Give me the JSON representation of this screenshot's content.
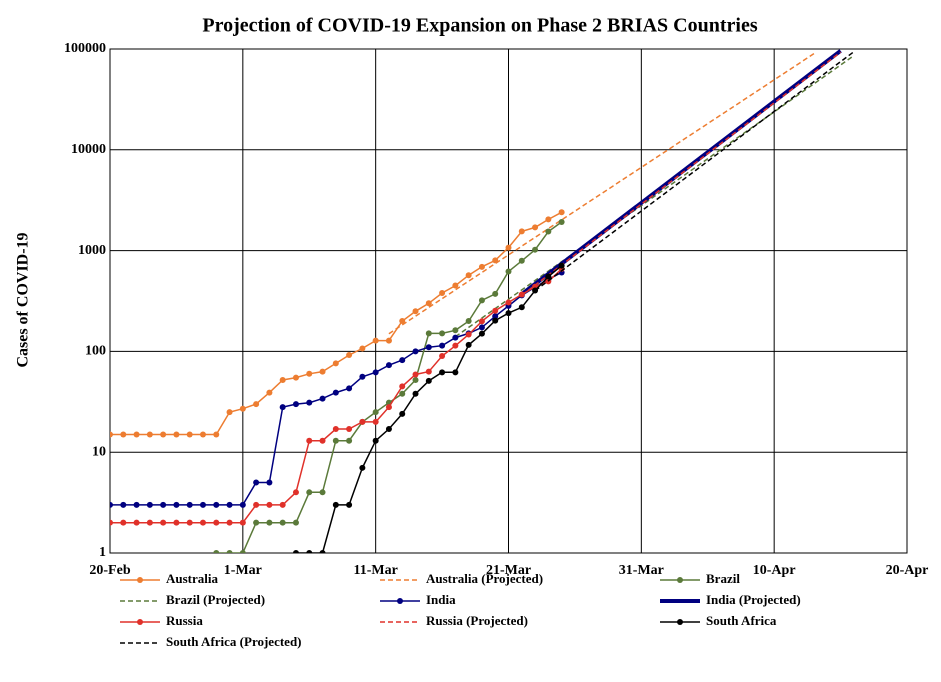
{
  "chart_data": {
    "type": "line",
    "title": "Projection of COVID-19 Expansion on Phase 2 BRIAS Countries",
    "y_label": "Cases of COVID-19",
    "y_scale": "log",
    "grid": true,
    "legend": "bottom",
    "xlim": [
      "20-Feb",
      "20-Apr"
    ],
    "xticks": [
      "20-Feb",
      "1-Mar",
      "11-Mar",
      "21-Mar",
      "31-Mar",
      "10-Apr",
      "20-Apr"
    ],
    "ylim": [
      1,
      100000
    ],
    "yticks": [
      1,
      10,
      100,
      1000,
      10000,
      100000
    ],
    "series": [
      {
        "name": "Australia",
        "color": "#ed7d31",
        "style": "solid",
        "marker": "circle",
        "line_width": 1.5,
        "x": [
          "20-Feb",
          "21-Feb",
          "22-Feb",
          "23-Feb",
          "24-Feb",
          "25-Feb",
          "26-Feb",
          "27-Feb",
          "28-Feb",
          "29-Feb",
          "1-Mar",
          "2-Mar",
          "3-Mar",
          "4-Mar",
          "5-Mar",
          "6-Mar",
          "7-Mar",
          "8-Mar",
          "9-Mar",
          "10-Mar",
          "11-Mar",
          "12-Mar",
          "13-Mar",
          "14-Mar",
          "15-Mar",
          "16-Mar",
          "17-Mar",
          "18-Mar",
          "19-Mar",
          "20-Mar",
          "21-Mar",
          "22-Mar",
          "23-Mar",
          "24-Mar",
          "25-Mar"
        ],
        "values": [
          15,
          15,
          15,
          15,
          15,
          15,
          15,
          15,
          15,
          25,
          27,
          30,
          39,
          52,
          55,
          60,
          63,
          76,
          92,
          107,
          128,
          128,
          200,
          250,
          300,
          380,
          450,
          570,
          690,
          800,
          1070,
          1550,
          1700,
          2040,
          2400
        ]
      },
      {
        "name": "Australia (Projected)",
        "color": "#ed7d31",
        "style": "dashed",
        "marker": "none",
        "line_width": 1.5,
        "x": [
          "12-Mar",
          "13-Apr"
        ],
        "values": [
          150,
          90000
        ]
      },
      {
        "name": "Brazil",
        "color": "#5b7a3a",
        "style": "solid",
        "marker": "circle",
        "line_width": 1.5,
        "x": [
          "28-Feb",
          "29-Feb",
          "1-Mar",
          "2-Mar",
          "3-Mar",
          "4-Mar",
          "5-Mar",
          "6-Mar",
          "7-Mar",
          "8-Mar",
          "9-Mar",
          "10-Mar",
          "11-Mar",
          "12-Mar",
          "13-Mar",
          "14-Mar",
          "15-Mar",
          "16-Mar",
          "17-Mar",
          "18-Mar",
          "19-Mar",
          "20-Mar",
          "21-Mar",
          "22-Mar",
          "23-Mar",
          "24-Mar",
          "25-Mar"
        ],
        "values": [
          1,
          1,
          1,
          2,
          2,
          2,
          2,
          4,
          4,
          13,
          13,
          20,
          25,
          31,
          38,
          52,
          151,
          151,
          162,
          200,
          321,
          372,
          621,
          793,
          1021,
          1546,
          1924
        ]
      },
      {
        "name": "Brazil (Projected)",
        "color": "#5b7a3a",
        "style": "dashed",
        "marker": "none",
        "line_width": 1.5,
        "x": [
          "17-Mar",
          "16-Apr"
        ],
        "values": [
          140,
          86000
        ]
      },
      {
        "name": "India",
        "color": "#000080",
        "style": "solid",
        "marker": "circle",
        "line_width": 1.5,
        "x": [
          "20-Feb",
          "21-Feb",
          "22-Feb",
          "23-Feb",
          "24-Feb",
          "25-Feb",
          "26-Feb",
          "27-Feb",
          "28-Feb",
          "29-Feb",
          "1-Mar",
          "2-Mar",
          "3-Mar",
          "4-Mar",
          "5-Mar",
          "6-Mar",
          "7-Mar",
          "8-Mar",
          "9-Mar",
          "10-Mar",
          "11-Mar",
          "12-Mar",
          "13-Mar",
          "14-Mar",
          "15-Mar",
          "16-Mar",
          "17-Mar",
          "18-Mar",
          "19-Mar",
          "20-Mar",
          "21-Mar",
          "22-Mar",
          "23-Mar",
          "24-Mar",
          "25-Mar"
        ],
        "values": [
          3,
          3,
          3,
          3,
          3,
          3,
          3,
          3,
          3,
          3,
          3,
          5,
          5,
          28,
          30,
          31,
          34,
          39,
          43,
          56,
          62,
          73,
          82,
          100,
          110,
          114,
          137,
          151,
          173,
          223,
          283,
          360,
          434,
          519,
          606
        ]
      },
      {
        "name": "India (Projected)",
        "color": "#000080",
        "style": "solid",
        "marker": "none",
        "line_width": 4,
        "x": [
          "22-Mar",
          "15-Apr"
        ],
        "values": [
          370,
          96000
        ]
      },
      {
        "name": "Russia",
        "color": "#e0312a",
        "style": "solid",
        "marker": "circle",
        "line_width": 1.5,
        "x": [
          "20-Feb",
          "21-Feb",
          "22-Feb",
          "23-Feb",
          "24-Feb",
          "25-Feb",
          "26-Feb",
          "27-Feb",
          "28-Feb",
          "29-Feb",
          "1-Mar",
          "2-Mar",
          "3-Mar",
          "4-Mar",
          "5-Mar",
          "6-Mar",
          "7-Mar",
          "8-Mar",
          "9-Mar",
          "10-Mar",
          "11-Mar",
          "12-Mar",
          "13-Mar",
          "14-Mar",
          "15-Mar",
          "16-Mar",
          "17-Mar",
          "18-Mar",
          "19-Mar",
          "20-Mar",
          "21-Mar",
          "22-Mar",
          "23-Mar",
          "24-Mar",
          "25-Mar"
        ],
        "values": [
          2,
          2,
          2,
          2,
          2,
          2,
          2,
          2,
          2,
          2,
          2,
          3,
          3,
          3,
          4,
          13,
          13,
          17,
          17,
          20,
          20,
          28,
          45,
          59,
          63,
          90,
          114,
          147,
          199,
          253,
          306,
          367,
          438,
          495,
          658
        ]
      },
      {
        "name": "Russia (Projected)",
        "color": "#e0312a",
        "style": "dashed",
        "marker": "none",
        "line_width": 1.5,
        "x": [
          "22-Mar",
          "15-Apr"
        ],
        "values": [
          360,
          93000
        ]
      },
      {
        "name": "South Africa",
        "color": "#000000",
        "style": "solid",
        "marker": "circle",
        "line_width": 1.5,
        "x": [
          "5-Mar",
          "6-Mar",
          "7-Mar",
          "8-Mar",
          "9-Mar",
          "10-Mar",
          "11-Mar",
          "12-Mar",
          "13-Mar",
          "14-Mar",
          "15-Mar",
          "16-Mar",
          "17-Mar",
          "18-Mar",
          "19-Mar",
          "20-Mar",
          "21-Mar",
          "22-Mar",
          "23-Mar",
          "24-Mar",
          "25-Mar"
        ],
        "values": [
          1,
          1,
          1,
          3,
          3,
          7,
          13,
          17,
          24,
          38,
          51,
          62,
          62,
          116,
          150,
          202,
          240,
          274,
          402,
          554,
          709
        ]
      },
      {
        "name": "South Africa (Projected)",
        "color": "#000000",
        "style": "dashed",
        "marker": "none",
        "line_width": 1.5,
        "x": [
          "23-Mar",
          "16-Apr"
        ],
        "values": [
          400,
          94000
        ]
      }
    ]
  }
}
